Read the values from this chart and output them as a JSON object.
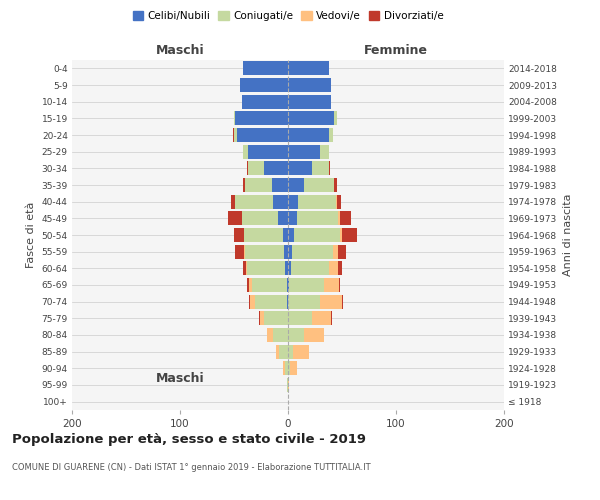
{
  "age_groups": [
    "100+",
    "95-99",
    "90-94",
    "85-89",
    "80-84",
    "75-79",
    "70-74",
    "65-69",
    "60-64",
    "55-59",
    "50-54",
    "45-49",
    "40-44",
    "35-39",
    "30-34",
    "25-29",
    "20-24",
    "15-19",
    "10-14",
    "5-9",
    "0-4"
  ],
  "birth_years": [
    "≤ 1918",
    "1919-1923",
    "1924-1928",
    "1929-1933",
    "1934-1938",
    "1939-1943",
    "1944-1948",
    "1949-1953",
    "1954-1958",
    "1959-1963",
    "1964-1968",
    "1969-1973",
    "1974-1978",
    "1979-1983",
    "1984-1988",
    "1989-1993",
    "1994-1998",
    "1999-2003",
    "2004-2008",
    "2009-2013",
    "2014-2018"
  ],
  "maschi_celibi": [
    0,
    0,
    0,
    0,
    0,
    0,
    1,
    1,
    3,
    4,
    5,
    9,
    14,
    15,
    22,
    37,
    47,
    49,
    43,
    44,
    42
  ],
  "maschi_coniugati": [
    0,
    1,
    3,
    8,
    14,
    22,
    30,
    32,
    35,
    36,
    36,
    34,
    35,
    25,
    15,
    5,
    3,
    1,
    0,
    0,
    0
  ],
  "maschi_vedovi": [
    0,
    0,
    2,
    3,
    5,
    4,
    4,
    3,
    1,
    1,
    0,
    0,
    0,
    0,
    0,
    0,
    0,
    0,
    0,
    0,
    0
  ],
  "maschi_divorziati": [
    0,
    0,
    0,
    0,
    0,
    1,
    1,
    2,
    3,
    8,
    9,
    13,
    4,
    2,
    1,
    0,
    1,
    0,
    0,
    0,
    0
  ],
  "femmine_celibi": [
    0,
    0,
    0,
    0,
    0,
    0,
    0,
    1,
    3,
    4,
    6,
    8,
    9,
    15,
    22,
    30,
    38,
    43,
    40,
    40,
    38
  ],
  "femmine_coniugati": [
    0,
    0,
    2,
    5,
    15,
    22,
    30,
    32,
    35,
    38,
    42,
    38,
    35,
    28,
    16,
    8,
    4,
    2,
    0,
    0,
    0
  ],
  "femmine_vedovi": [
    0,
    1,
    6,
    14,
    18,
    18,
    20,
    14,
    8,
    4,
    2,
    2,
    1,
    0,
    0,
    0,
    0,
    0,
    0,
    0,
    0
  ],
  "femmine_divorziati": [
    0,
    0,
    0,
    0,
    0,
    1,
    1,
    1,
    4,
    8,
    14,
    10,
    4,
    2,
    1,
    0,
    0,
    0,
    0,
    0,
    0
  ],
  "colors": {
    "celibi": "#4472C4",
    "coniugati": "#c5d9a0",
    "vedovi": "#ffc080",
    "divorziati": "#c0392b"
  },
  "xlim": [
    -200,
    200
  ],
  "xticks": [
    -200,
    -100,
    0,
    100,
    200
  ],
  "xticklabels": [
    "200",
    "100",
    "0",
    "100",
    "200"
  ],
  "title": "Popolazione per età, sesso e stato civile - 2019",
  "subtitle": "COMUNE DI GUARENE (CN) - Dati ISTAT 1° gennaio 2019 - Elaborazione TUTTITALIA.IT",
  "ylabel": "Fasce di età",
  "ylabel_right": "Anni di nascita",
  "label_maschi": "Maschi",
  "label_femmine": "Femmine",
  "legend_labels": [
    "Celibi/Nubili",
    "Coniugati/e",
    "Vedovi/e",
    "Divorziati/e"
  ],
  "bg_color": "#f5f5f5"
}
